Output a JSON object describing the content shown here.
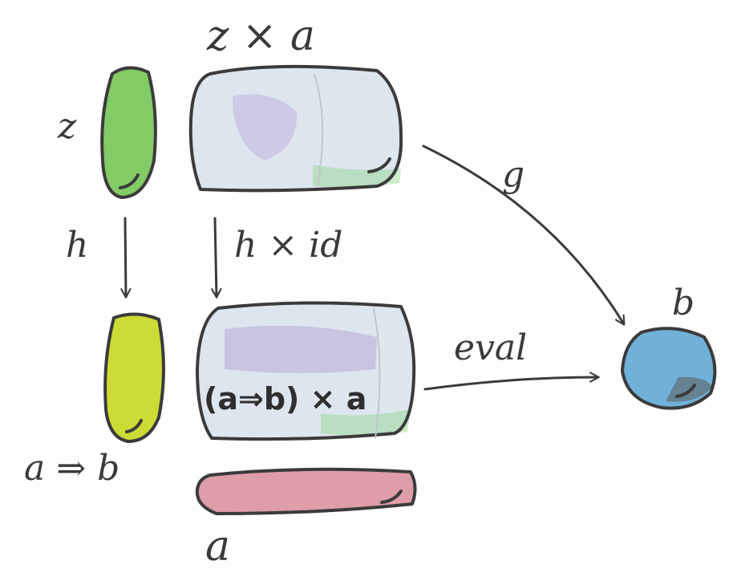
{
  "labels": {
    "z_product": "z × a",
    "z": "z",
    "g": "g",
    "h": "h",
    "h_times_id": "h × id",
    "b_top": "b",
    "eval": "eval",
    "exp_times_a": "(a⇒b) × a",
    "exp": "a ⇒ b",
    "a": "a"
  },
  "colors": {
    "z_object": "#6cc24a",
    "exp_object": "#c8d81f",
    "product_box": "#dde6ee",
    "product_tint": "#b7a9d6",
    "b_object": "#6fb1d9",
    "a_object": "#d98c99",
    "ink": "#3b3b3b"
  }
}
